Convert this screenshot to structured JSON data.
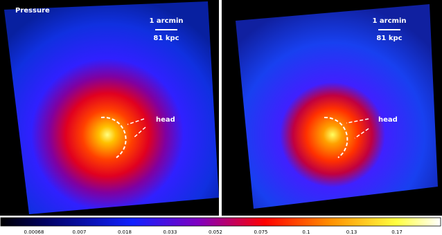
{
  "panels": [
    {
      "title": "Pressure",
      "scale_label": "1 arcmin",
      "scale_distance": "81 kpc",
      "annotation": "head"
    },
    {
      "scale_label": "1 arcmin",
      "scale_distance": "81 kpc",
      "annotation": "head"
    }
  ],
  "colorbar": {
    "labels": [
      "0.00068",
      "0.007",
      "0.018",
      "0.033",
      "0.052",
      "0.075",
      "0.1",
      "0.13",
      "0.17"
    ]
  }
}
